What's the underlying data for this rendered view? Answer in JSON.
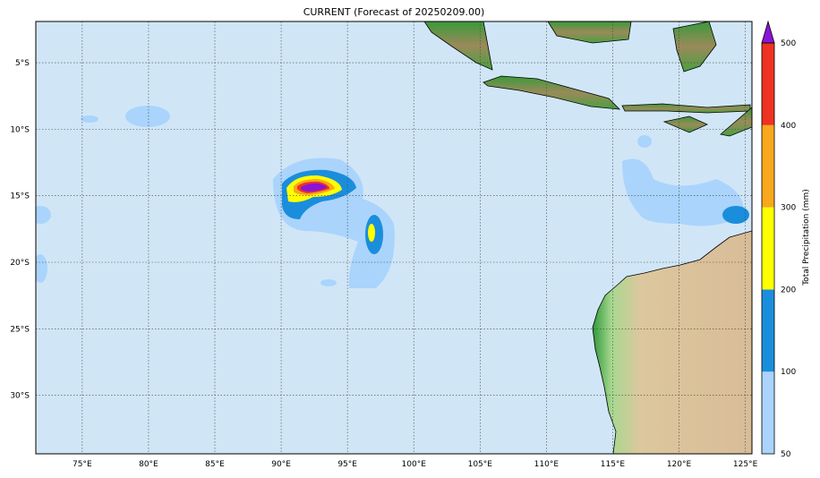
{
  "title": "CURRENT (Forecast of 20250209.00)",
  "map": {
    "lon_range": [
      71.5,
      125.5
    ],
    "lat_range": [
      -34.4,
      -1.9
    ],
    "lon_ticks": [
      75,
      80,
      85,
      90,
      95,
      100,
      105,
      110,
      115,
      120,
      125
    ],
    "lon_labels": [
      "75°E",
      "80°E",
      "85°E",
      "90°E",
      "95°E",
      "100°E",
      "105°E",
      "110°E",
      "115°E",
      "120°E",
      "125°E"
    ],
    "lat_ticks": [
      -5,
      -10,
      -15,
      -20,
      -25,
      -30
    ],
    "lat_labels": [
      "5°S",
      "10°S",
      "15°S",
      "20°S",
      "25°S",
      "30°S"
    ],
    "ocean_color": "#d0e6f6",
    "gridlines": "dotted"
  },
  "colorbar": {
    "label": "Total Precipitation (mm)",
    "levels": [
      50,
      100,
      200,
      300,
      400,
      500
    ],
    "level_labels": [
      "50",
      "100",
      "200",
      "300",
      "400",
      "500"
    ],
    "colors": [
      "#aad4fc",
      "#1a8edc",
      "#ffff00",
      "#f8a81c",
      "#ee3322"
    ],
    "extend_color": "#8a14d8",
    "extend": "max"
  }
}
